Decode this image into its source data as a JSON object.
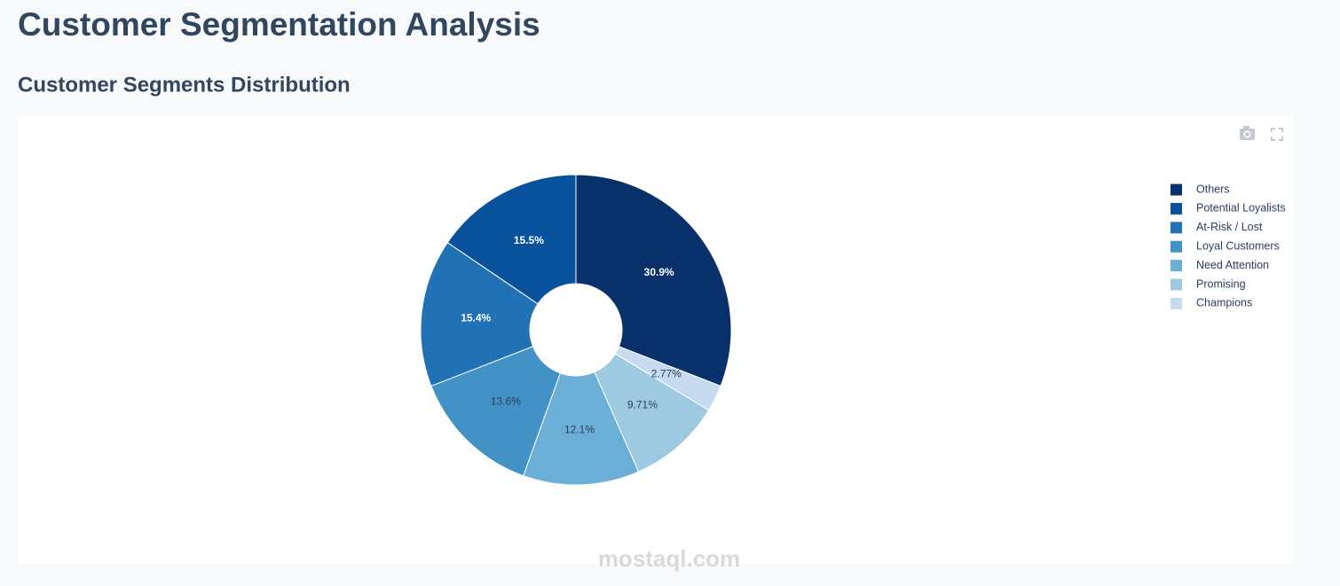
{
  "page_title": "Customer Segmentation Analysis",
  "section_title": "Customer Segments Distribution",
  "watermark": "mostaql.com",
  "chart_data": {
    "type": "pie",
    "hole": true,
    "direction": "counterclockwise",
    "categories": [
      "Others",
      "Potential Loyalists",
      "At-Risk / Lost",
      "Loyal Customers",
      "Need Attention",
      "Promising",
      "Champions"
    ],
    "values": [
      30.9,
      15.5,
      15.4,
      13.6,
      12.1,
      9.71,
      2.77
    ],
    "value_labels": [
      "30.9%",
      "15.5%",
      "15.4%",
      "13.6%",
      "12.1%",
      "9.71%",
      "2.77%"
    ],
    "colors": [
      "#08306b",
      "#08519c",
      "#2171b5",
      "#4292c6",
      "#6baed6",
      "#9ecae1",
      "#c6dbef"
    ],
    "legend": "right"
  }
}
